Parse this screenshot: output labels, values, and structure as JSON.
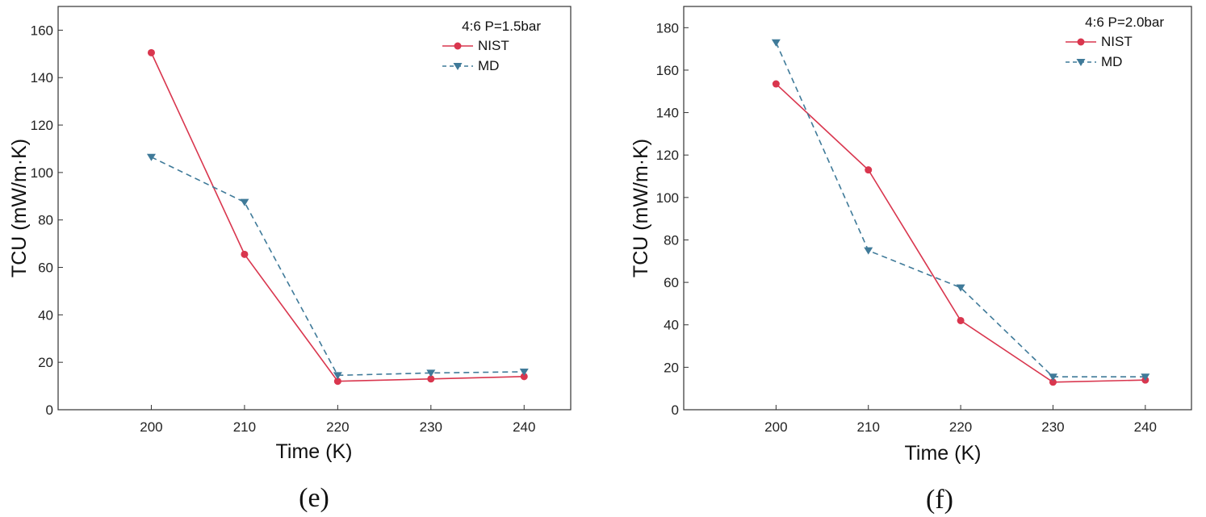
{
  "chart_data": [
    {
      "type": "line",
      "caption": "(e)",
      "legend_title": "4:6  P=1.5bar",
      "xlabel": "Time (K)",
      "ylabel": "TCU (mW/m·K)",
      "x": [
        200,
        210,
        220,
        230,
        240
      ],
      "xlim": [
        190,
        245
      ],
      "ylim": [
        0,
        170
      ],
      "xticks": [
        200,
        210,
        220,
        230,
        240
      ],
      "yticks": [
        0,
        20,
        40,
        60,
        80,
        100,
        120,
        140,
        160
      ],
      "series": [
        {
          "name": "NIST",
          "values": [
            150.5,
            65.5,
            12,
            13,
            14
          ],
          "color": "#d9364e",
          "marker": "circle",
          "dash": "solid"
        },
        {
          "name": "MD",
          "values": [
            106.5,
            87.5,
            14.5,
            15.5,
            16
          ],
          "color": "#3f7a99",
          "marker": "triangle-down",
          "dash": "dashed"
        }
      ]
    },
    {
      "type": "line",
      "caption": "(f)",
      "legend_title": "4:6  P=2.0bar",
      "xlabel": "Time (K)",
      "ylabel": "TCU (mW/m·K)",
      "x": [
        200,
        210,
        220,
        230,
        240
      ],
      "xlim": [
        190,
        245
      ],
      "ylim": [
        0,
        190
      ],
      "xticks": [
        200,
        210,
        220,
        230,
        240
      ],
      "yticks": [
        0,
        20,
        40,
        60,
        80,
        100,
        120,
        140,
        160,
        180
      ],
      "series": [
        {
          "name": "NIST",
          "values": [
            153.5,
            113,
            42,
            13,
            14
          ],
          "color": "#d9364e",
          "marker": "circle",
          "dash": "solid"
        },
        {
          "name": "MD",
          "values": [
            173,
            75,
            57.5,
            15.5,
            15.5
          ],
          "color": "#3f7a99",
          "marker": "triangle-down",
          "dash": "dashed"
        }
      ]
    }
  ]
}
